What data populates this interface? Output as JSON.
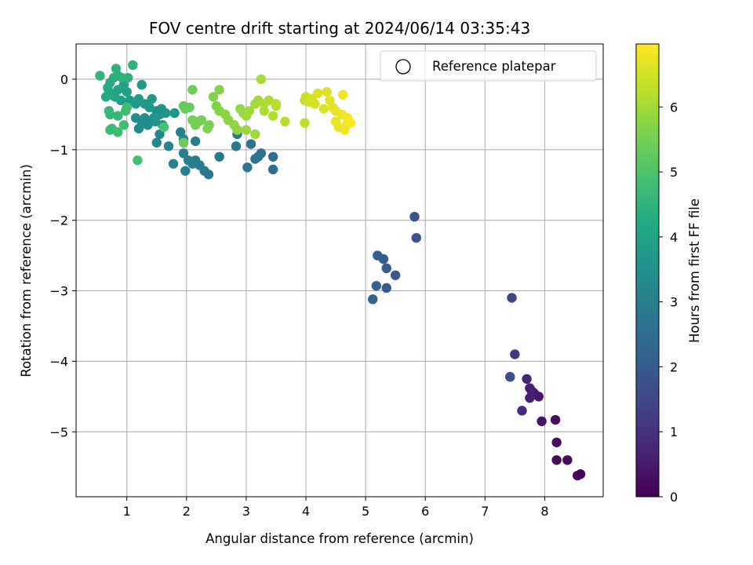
{
  "chart_data": {
    "type": "scatter",
    "title": "FOV centre drift starting at 2024/06/14 03:35:43",
    "xlabel": "Angular distance from reference (arcmin)",
    "ylabel": "Rotation from reference (arcmin)",
    "xlim": [
      0.15,
      8.98
    ],
    "ylim": [
      -5.92,
      0.5
    ],
    "xticks": [
      1,
      2,
      3,
      4,
      5,
      6,
      7,
      8
    ],
    "yticks": [
      0,
      -1,
      -2,
      -3,
      -4,
      -5
    ],
    "grid": true,
    "legend": {
      "position": "top-right",
      "entries": [
        "Reference platepar"
      ]
    },
    "colorbar": {
      "label": "Hours from first FF file",
      "ticks": [
        0,
        1,
        2,
        3,
        4,
        5,
        6
      ],
      "range": [
        0,
        6.97
      ],
      "colormap": "viridis"
    },
    "series": [
      {
        "color_by": "hours",
        "points": [
          [
            8.6,
            -5.6,
            0.05
          ],
          [
            8.55,
            -5.62,
            0.08
          ],
          [
            8.38,
            -5.4,
            0.15
          ],
          [
            8.2,
            -5.4,
            0.2
          ],
          [
            8.2,
            -5.15,
            0.25
          ],
          [
            8.18,
            -4.83,
            0.3
          ],
          [
            7.95,
            -4.85,
            0.35
          ],
          [
            7.9,
            -4.5,
            0.42
          ],
          [
            7.82,
            -4.45,
            0.5
          ],
          [
            7.78,
            -4.42,
            0.55
          ],
          [
            7.75,
            -4.52,
            0.6
          ],
          [
            7.75,
            -4.38,
            0.68
          ],
          [
            7.7,
            -4.25,
            0.75
          ],
          [
            7.62,
            -4.7,
            0.85
          ],
          [
            7.5,
            -3.9,
            1.1
          ],
          [
            7.45,
            -3.1,
            1.4
          ],
          [
            7.42,
            -4.22,
            1.6
          ],
          [
            7.42,
            -4.22,
            1.65
          ],
          [
            5.85,
            -2.25,
            1.8
          ],
          [
            5.82,
            -1.95,
            1.85
          ],
          [
            5.5,
            -2.78,
            1.9
          ],
          [
            5.35,
            -2.96,
            1.95
          ],
          [
            5.35,
            -2.68,
            2.0
          ],
          [
            5.3,
            -2.55,
            2.05
          ],
          [
            5.2,
            -2.5,
            2.1
          ],
          [
            5.18,
            -2.93,
            2.15
          ],
          [
            5.12,
            -3.12,
            2.2
          ],
          [
            3.45,
            -1.28,
            2.55
          ],
          [
            3.45,
            -1.1,
            2.55
          ],
          [
            3.25,
            -1.05,
            2.6
          ],
          [
            3.2,
            -1.1,
            2.6
          ],
          [
            3.15,
            -1.13,
            2.65
          ],
          [
            3.08,
            -0.92,
            2.65
          ],
          [
            3.02,
            -1.25,
            2.7
          ],
          [
            2.85,
            -0.78,
            2.75
          ],
          [
            2.83,
            -0.95,
            2.75
          ],
          [
            2.55,
            -1.1,
            2.8
          ],
          [
            2.37,
            -1.35,
            2.85
          ],
          [
            2.3,
            -1.3,
            2.85
          ],
          [
            2.22,
            -1.22,
            2.9
          ],
          [
            2.15,
            -1.15,
            2.9
          ],
          [
            2.15,
            -0.88,
            2.95
          ],
          [
            2.1,
            -1.2,
            2.95
          ],
          [
            2.03,
            -1.15,
            3.0
          ],
          [
            1.98,
            -1.3,
            3.0
          ],
          [
            1.95,
            -1.05,
            3.05
          ],
          [
            1.9,
            -0.75,
            3.05
          ],
          [
            1.95,
            -0.85,
            3.1
          ],
          [
            1.78,
            -1.2,
            3.1
          ],
          [
            1.7,
            -0.95,
            3.15
          ],
          [
            1.5,
            -0.9,
            3.2
          ],
          [
            1.55,
            -0.78,
            3.2
          ],
          [
            1.35,
            -0.65,
            3.25
          ],
          [
            1.4,
            -0.6,
            3.3
          ],
          [
            1.3,
            -0.55,
            3.35
          ],
          [
            1.25,
            -0.6,
            3.4
          ],
          [
            1.2,
            -0.7,
            3.4
          ],
          [
            1.15,
            -0.55,
            3.45
          ],
          [
            1.5,
            -0.45,
            3.45
          ],
          [
            1.6,
            -0.65,
            3.5
          ],
          [
            1.55,
            -0.5,
            3.5
          ],
          [
            1.45,
            -0.55,
            3.55
          ],
          [
            1.58,
            -0.42,
            3.55
          ],
          [
            1.65,
            -0.48,
            3.6
          ],
          [
            1.8,
            -0.48,
            3.6
          ],
          [
            1.48,
            -0.6,
            3.65
          ],
          [
            1.38,
            -0.4,
            3.65
          ],
          [
            1.42,
            -0.28,
            3.7
          ],
          [
            1.3,
            -0.35,
            3.7
          ],
          [
            1.2,
            -0.28,
            3.75
          ],
          [
            1.15,
            -0.35,
            3.75
          ],
          [
            1.25,
            -0.08,
            3.8
          ],
          [
            1.05,
            -0.3,
            3.8
          ],
          [
            0.9,
            -0.3,
            3.85
          ],
          [
            1.0,
            -0.18,
            3.9
          ],
          [
            0.95,
            -0.08,
            3.95
          ],
          [
            0.85,
            -0.15,
            4.0
          ],
          [
            0.8,
            -0.25,
            4.05
          ],
          [
            0.75,
            -0.22,
            4.1
          ],
          [
            0.7,
            -0.18,
            4.15
          ],
          [
            0.65,
            -0.25,
            4.2
          ],
          [
            0.68,
            -0.12,
            4.25
          ],
          [
            0.72,
            -0.05,
            4.3
          ],
          [
            0.78,
            0.02,
            4.35
          ],
          [
            0.85,
            0.05,
            4.4
          ],
          [
            0.92,
            0.02,
            4.4
          ],
          [
            1.02,
            0.02,
            4.45
          ],
          [
            1.1,
            0.2,
            4.5
          ],
          [
            0.82,
            0.15,
            4.5
          ],
          [
            0.55,
            0.05,
            4.55
          ],
          [
            0.7,
            -0.45,
            4.6
          ],
          [
            0.72,
            -0.5,
            4.6
          ],
          [
            0.85,
            -0.52,
            4.65
          ],
          [
            0.75,
            -0.7,
            4.7
          ],
          [
            0.72,
            -0.72,
            4.7
          ],
          [
            0.85,
            -0.75,
            4.75
          ],
          [
            0.95,
            -0.65,
            4.8
          ],
          [
            0.98,
            -0.45,
            4.8
          ],
          [
            1.0,
            -0.4,
            4.85
          ],
          [
            1.18,
            -1.15,
            4.9
          ],
          [
            1.62,
            -0.68,
            4.95
          ],
          [
            1.95,
            -0.38,
            5.3
          ],
          [
            1.98,
            -0.42,
            5.35
          ],
          [
            2.05,
            -0.4,
            5.35
          ],
          [
            1.95,
            -0.9,
            5.4
          ],
          [
            2.1,
            -0.15,
            5.45
          ],
          [
            2.1,
            -0.58,
            5.5
          ],
          [
            2.2,
            -0.6,
            5.5
          ],
          [
            2.15,
            -0.65,
            5.55
          ],
          [
            2.25,
            -0.58,
            5.55
          ],
          [
            2.35,
            -0.7,
            5.6
          ],
          [
            2.38,
            -0.65,
            5.6
          ],
          [
            2.45,
            -0.25,
            5.65
          ],
          [
            2.5,
            -0.38,
            5.65
          ],
          [
            2.55,
            -0.45,
            5.7
          ],
          [
            2.55,
            -0.15,
            5.7
          ],
          [
            2.65,
            -0.5,
            5.75
          ],
          [
            2.7,
            -0.58,
            5.75
          ],
          [
            2.8,
            -0.65,
            5.8
          ],
          [
            2.85,
            -0.72,
            5.8
          ],
          [
            2.9,
            -0.42,
            5.85
          ],
          [
            2.95,
            -0.48,
            5.85
          ],
          [
            3.0,
            -0.52,
            5.9
          ],
          [
            3.0,
            -0.72,
            5.9
          ],
          [
            3.05,
            -0.45,
            5.95
          ],
          [
            3.15,
            -0.78,
            5.95
          ],
          [
            3.15,
            -0.35,
            6.0
          ],
          [
            3.2,
            -0.3,
            6.0
          ],
          [
            3.25,
            0.0,
            6.05
          ],
          [
            3.3,
            -0.35,
            6.05
          ],
          [
            3.3,
            -0.45,
            6.1
          ],
          [
            3.38,
            -0.3,
            6.1
          ],
          [
            3.45,
            -0.52,
            6.15
          ],
          [
            3.5,
            -0.38,
            6.15
          ],
          [
            3.5,
            -0.35,
            6.2
          ],
          [
            3.65,
            -0.6,
            6.2
          ],
          [
            3.98,
            -0.62,
            6.3
          ],
          [
            3.98,
            -0.3,
            6.35
          ],
          [
            4.0,
            -0.25,
            6.4
          ],
          [
            4.05,
            -0.32,
            6.45
          ],
          [
            4.1,
            -0.28,
            6.5
          ],
          [
            4.15,
            -0.35,
            6.55
          ],
          [
            4.2,
            -0.2,
            6.6
          ],
          [
            4.3,
            -0.42,
            6.62
          ],
          [
            4.35,
            -0.18,
            6.65
          ],
          [
            4.4,
            -0.3,
            6.68
          ],
          [
            4.45,
            -0.4,
            6.7
          ],
          [
            4.5,
            -0.45,
            6.72
          ],
          [
            4.5,
            -0.6,
            6.75
          ],
          [
            4.55,
            -0.68,
            6.78
          ],
          [
            4.6,
            -0.5,
            6.8
          ],
          [
            4.62,
            -0.22,
            6.82
          ],
          [
            4.65,
            -0.72,
            6.85
          ],
          [
            4.68,
            -0.65,
            6.88
          ],
          [
            4.7,
            -0.55,
            6.9
          ],
          [
            4.75,
            -0.62,
            6.95
          ]
        ]
      }
    ]
  }
}
